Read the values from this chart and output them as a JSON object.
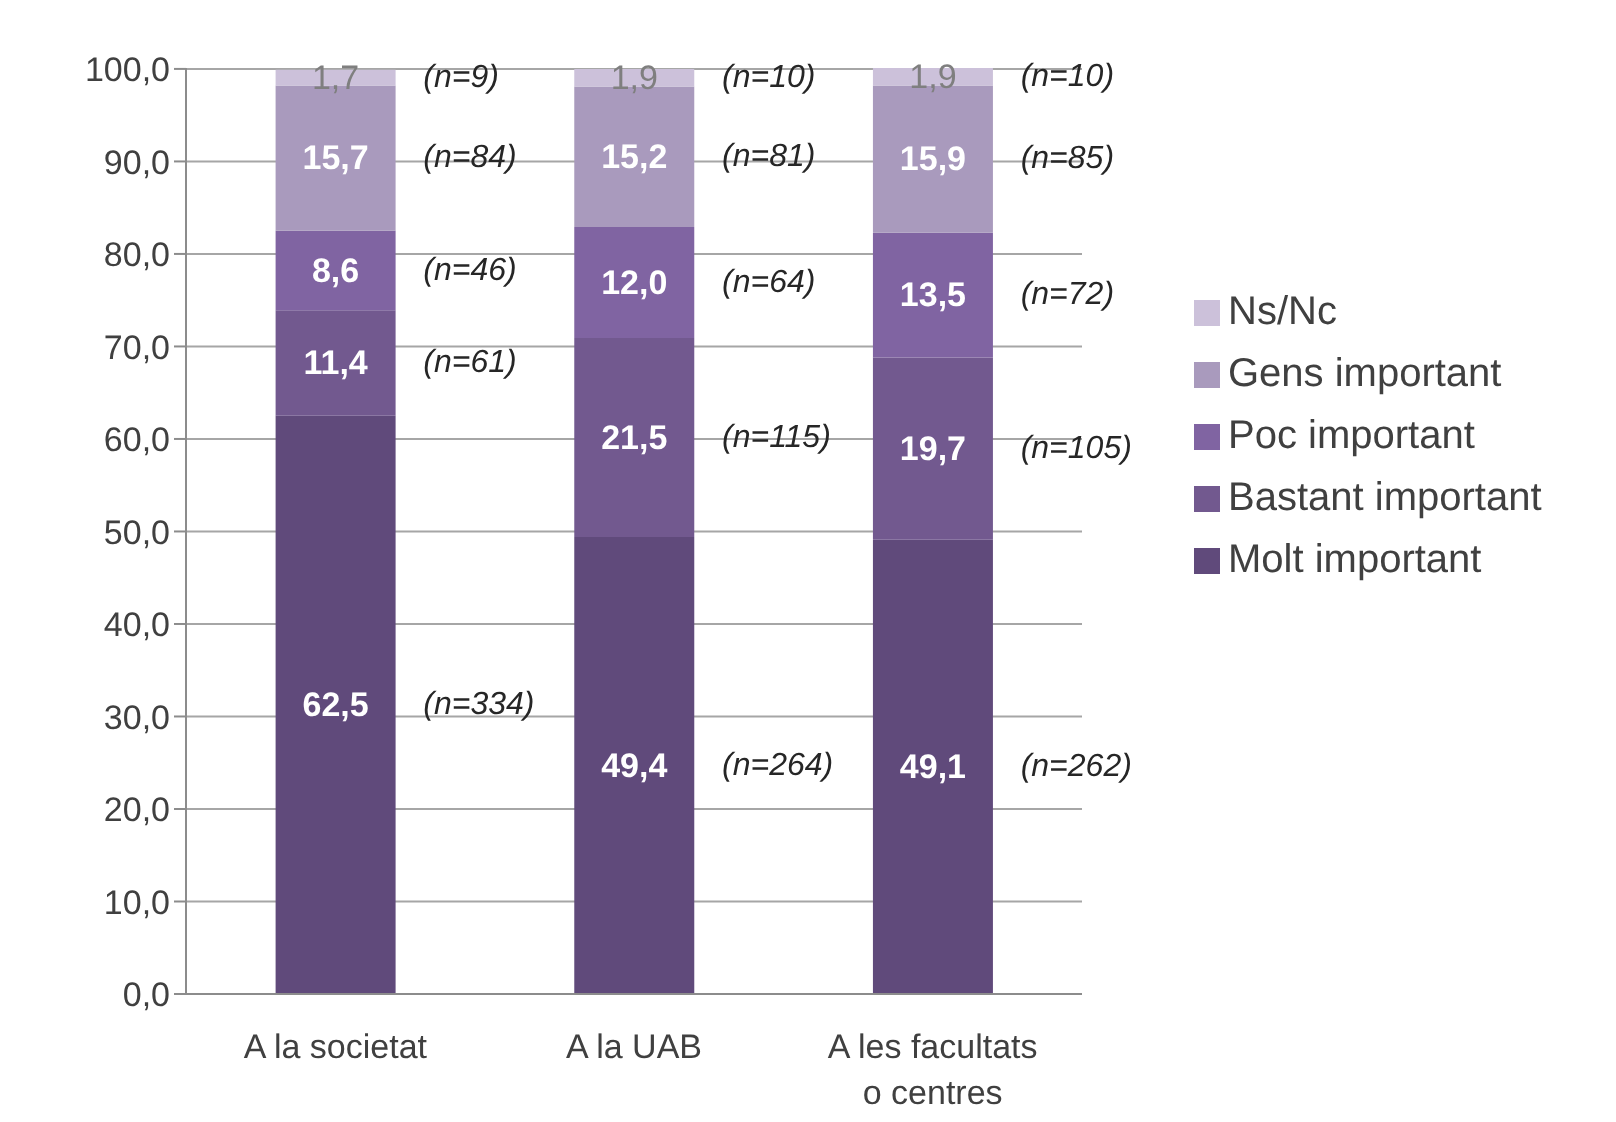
{
  "chart_data": {
    "type": "bar",
    "stacked": true,
    "categories": [
      "A la societat",
      "A la UAB",
      "A les facultats o centres"
    ],
    "series": [
      {
        "name": "Molt important",
        "color": "#604a7b",
        "values": [
          62.5,
          49.4,
          49.1
        ],
        "value_labels": [
          "62,5",
          "49,4",
          "49,1"
        ]
      },
      {
        "name": "Bastant important",
        "color": "#72598f",
        "values": [
          11.4,
          21.5,
          19.7
        ],
        "value_labels": [
          "11,4",
          "21,5",
          "19,7"
        ]
      },
      {
        "name": "Poc important",
        "color": "#8064a2",
        "values": [
          8.6,
          12.0,
          13.5
        ],
        "value_labels": [
          "8,6",
          "12,0",
          "13,5"
        ]
      },
      {
        "name": "Gens important",
        "color": "#a99abd",
        "values": [
          15.7,
          15.2,
          15.9
        ],
        "value_labels": [
          "15,7",
          "15,2",
          "15,9"
        ]
      },
      {
        "name": "Ns/Nc",
        "color": "#ccc1da",
        "values": [
          1.7,
          1.9,
          1.9
        ],
        "value_labels": [
          "1,7",
          "1,9",
          "1,9"
        ]
      }
    ],
    "ylim": [
      0,
      100.1
    ],
    "yticks": [
      {
        "value": 0,
        "label": "0,0"
      },
      {
        "value": 10,
        "label": "10,0"
      },
      {
        "value": 20,
        "label": "20,0"
      },
      {
        "value": 30,
        "label": "30,0"
      },
      {
        "value": 40,
        "label": "40,0"
      },
      {
        "value": 50,
        "label": "50,0"
      },
      {
        "value": 60,
        "label": "60,0"
      },
      {
        "value": 70,
        "label": "70,0"
      },
      {
        "value": 80,
        "label": "80,0"
      },
      {
        "value": 90,
        "label": "90,0"
      },
      {
        "value": 100,
        "label": "100,0"
      }
    ],
    "grid": "y",
    "legend": "right",
    "annotations": [
      "(n=334)",
      "(n=61)",
      "(n=46)",
      "(n=84)",
      "(n=9)",
      "(n=264)",
      "(n=115)",
      "(n=64)",
      "(n=81)",
      "(n=10)",
      "(n=262)",
      "(n=105)",
      "(n=72)",
      "(n=85)",
      "(n=10)"
    ]
  }
}
